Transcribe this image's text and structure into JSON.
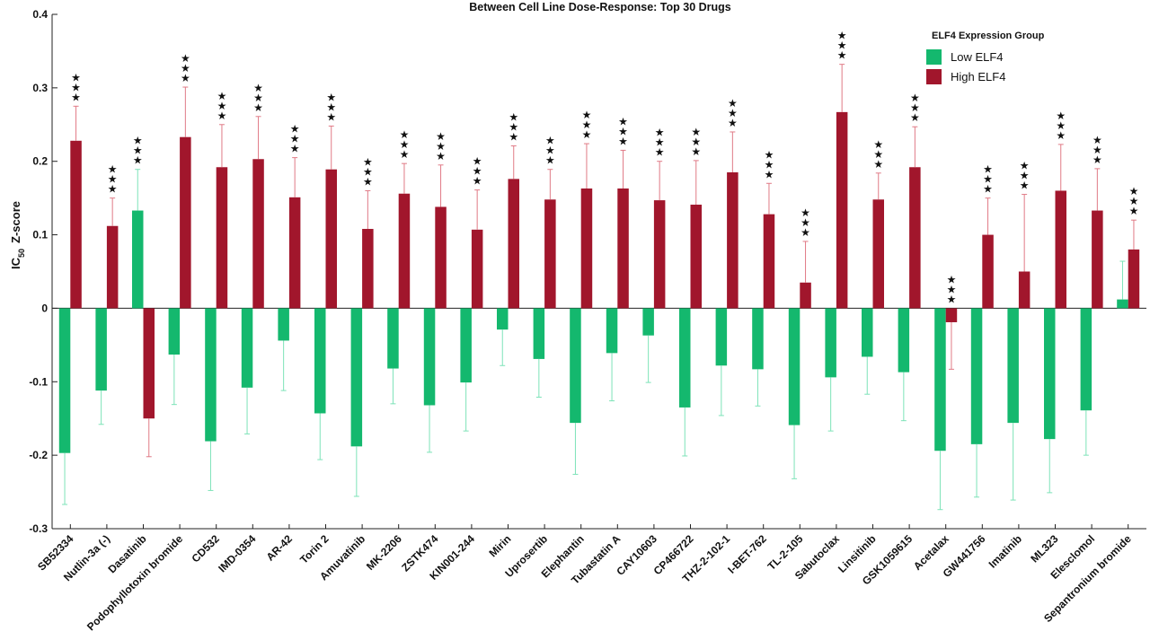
{
  "chart_data": {
    "type": "bar",
    "title": "Between Cell Line Dose-Response: Top 30 Drugs",
    "xlabel": "",
    "ylabel_main": "IC",
    "ylabel_sub": "50",
    "ylabel_rest": "Z-score",
    "ylim": [
      -0.3,
      0.4
    ],
    "yticks": [
      "-0.3",
      "-0.2",
      "-0.1",
      "0",
      "0.1",
      "0.2",
      "0.3",
      "0.4"
    ],
    "yticks_values": [
      -0.3,
      -0.2,
      -0.1,
      0,
      0.1,
      0.2,
      0.3,
      0.4
    ],
    "grid": false,
    "legend_position": "top-right",
    "legend_title": "ELF4 Expression Group",
    "categories": [
      "SB52334",
      "Nutlin-3a (-)",
      "Dasatinib",
      "Podophyllotoxin bromide",
      "CD532",
      "IMD-0354",
      "AR-42",
      "Torin 2",
      "Amuvatinib",
      "MK-2206",
      "ZSTK474",
      "KIN001-244",
      "Mirin",
      "Uprosertib",
      "Elephantin",
      "Tubastatin A",
      "CAY10603",
      "CP466722",
      "THZ-2-102-1",
      "I-BET-762",
      "TL-2-105",
      "Sabutoclax",
      "Linsitinib",
      "GSK1059615",
      "Acetalax",
      "GW441756",
      "Imatinib",
      "ML323",
      "Elesclomol",
      "Sepantronium bromide"
    ],
    "series": [
      {
        "name": "Low ELF4",
        "color": "#14b86e",
        "error_color": "#7de3b8",
        "values": [
          -0.197,
          -0.112,
          0.133,
          -0.063,
          -0.181,
          -0.108,
          -0.044,
          -0.143,
          -0.188,
          -0.082,
          -0.132,
          -0.101,
          -0.029,
          -0.069,
          -0.156,
          -0.061,
          -0.037,
          -0.135,
          -0.078,
          -0.083,
          -0.159,
          -0.094,
          -0.066,
          -0.087,
          -0.194,
          -0.185,
          -0.156,
          -0.178,
          -0.139,
          0.012
        ],
        "errors": [
          0.07,
          0.046,
          0.056,
          0.068,
          0.067,
          0.063,
          0.068,
          0.063,
          0.068,
          0.048,
          0.064,
          0.066,
          0.049,
          0.052,
          0.07,
          0.065,
          0.064,
          0.066,
          0.068,
          0.05,
          0.073,
          0.073,
          0.051,
          0.066,
          0.08,
          0.072,
          0.105,
          0.073,
          0.061,
          0.052
        ]
      },
      {
        "name": "High ELF4",
        "color": "#a1162c",
        "error_color": "#e07a86",
        "values": [
          0.228,
          0.112,
          -0.15,
          0.233,
          0.192,
          0.203,
          0.151,
          0.189,
          0.108,
          0.156,
          0.138,
          0.107,
          0.176,
          0.148,
          0.163,
          0.163,
          0.147,
          0.141,
          0.185,
          0.128,
          0.035,
          0.267,
          0.148,
          0.192,
          -0.019,
          0.1,
          0.05,
          0.16,
          0.133,
          0.08
        ],
        "errors": [
          0.047,
          0.038,
          0.052,
          0.068,
          0.058,
          0.058,
          0.054,
          0.059,
          0.052,
          0.041,
          0.057,
          0.054,
          0.045,
          0.041,
          0.061,
          0.052,
          0.053,
          0.06,
          0.055,
          0.042,
          0.056,
          0.065,
          0.036,
          0.055,
          0.064,
          0.05,
          0.105,
          0.063,
          0.057,
          0.04
        ]
      }
    ],
    "significance_label": "***",
    "significance_marker": "★"
  }
}
